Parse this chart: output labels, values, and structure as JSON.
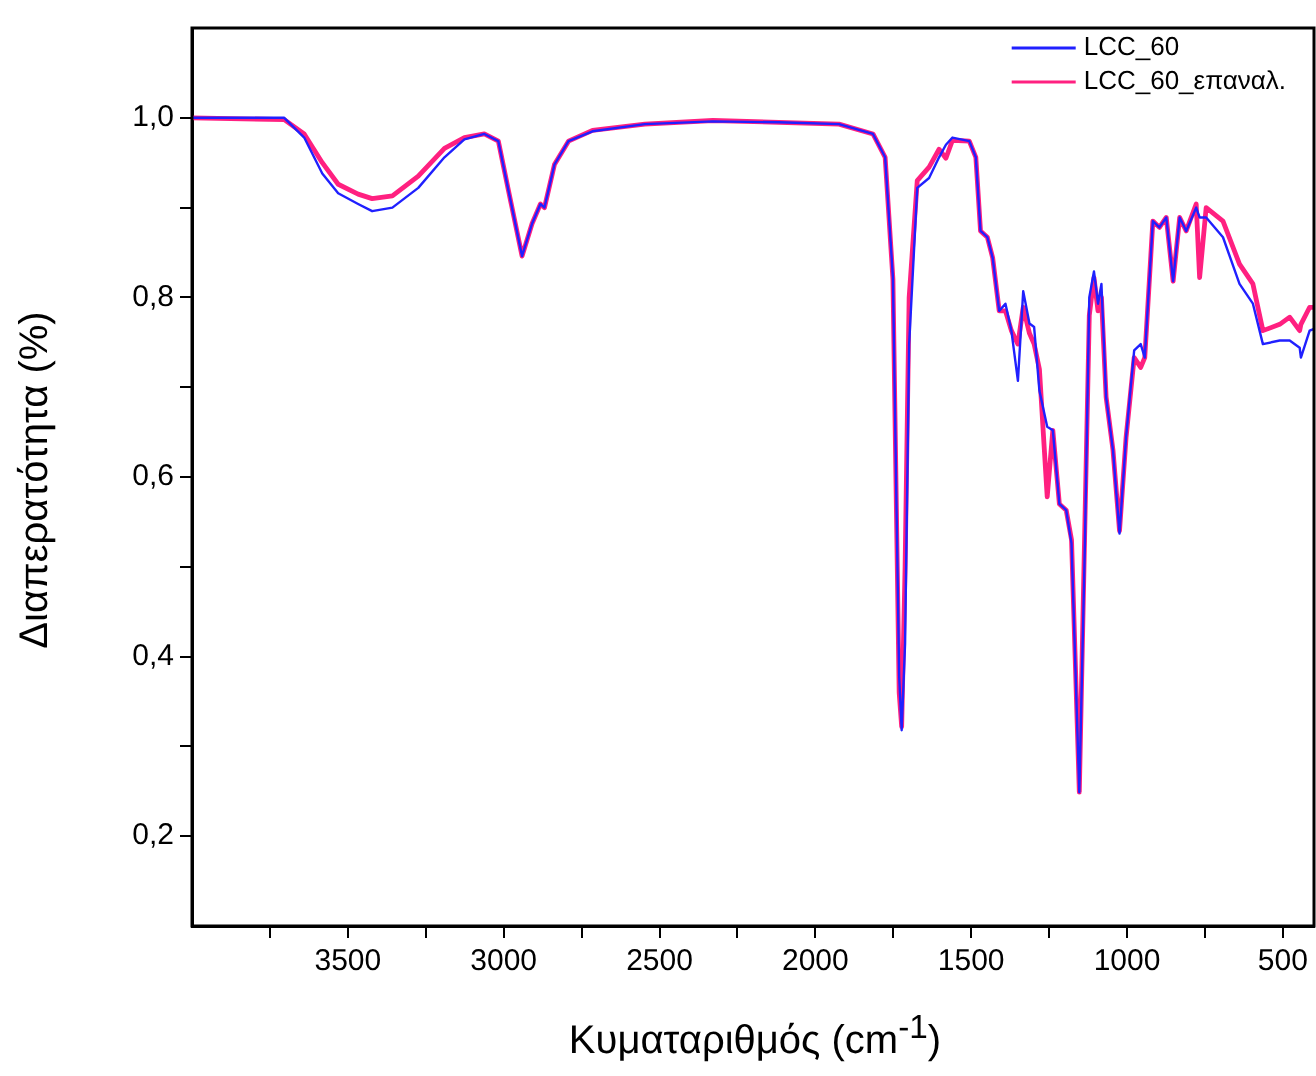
{
  "chart_data": {
    "type": "line",
    "xlabel": "Κυματαριθμός (cm$^{-1}$)",
    "ylabel": "Διαπερατότητα (%)",
    "x": [
      4000,
      3704,
      3640,
      3582,
      3531,
      3467,
      3422,
      3357,
      3274,
      3190,
      3126,
      3062,
      3017,
      2984,
      2941,
      2909,
      2882,
      2869,
      2837,
      2792,
      2715,
      2547,
      2329,
      2117,
      1924,
      1815,
      1776,
      1751,
      1731,
      1723,
      1712,
      1699,
      1673,
      1635,
      1603,
      1581,
      1560,
      1506,
      1485,
      1470,
      1448,
      1431,
      1410,
      1390,
      1371,
      1350,
      1333,
      1313,
      1298,
      1281,
      1256,
      1238,
      1217,
      1195,
      1178,
      1153,
      1135,
      1121,
      1106,
      1093,
      1082,
      1067,
      1045,
      1024,
      1003,
      977,
      956,
      943,
      917,
      896,
      874,
      852,
      831,
      810,
      778,
      767,
      746,
      692,
      639,
      596,
      564,
      510,
      478,
      446,
      442,
      414,
      400
    ],
    "series": [
      {
        "name": "LCC_60",
        "color": "#2020ff",
        "values": [
          1.0,
          1.0,
          0.978,
          0.938,
          0.916,
          0.904,
          0.896,
          0.9,
          0.922,
          0.956,
          0.976,
          0.982,
          0.974,
          0.918,
          0.846,
          0.882,
          0.904,
          0.9,
          0.948,
          0.974,
          0.985,
          0.993,
          0.996,
          0.995,
          0.993,
          0.982,
          0.956,
          0.822,
          0.378,
          0.318,
          0.415,
          0.748,
          0.922,
          0.933,
          0.956,
          0.97,
          0.978,
          0.974,
          0.956,
          0.874,
          0.867,
          0.844,
          0.785,
          0.793,
          0.763,
          0.707,
          0.807,
          0.771,
          0.767,
          0.696,
          0.656,
          0.652,
          0.57,
          0.563,
          0.526,
          0.249,
          0.526,
          0.8,
          0.829,
          0.793,
          0.815,
          0.689,
          0.63,
          0.537,
          0.644,
          0.741,
          0.748,
          0.733,
          0.885,
          0.878,
          0.889,
          0.818,
          0.889,
          0.874,
          0.9,
          0.889,
          0.889,
          0.867,
          0.815,
          0.793,
          0.748,
          0.752,
          0.752,
          0.744,
          0.733,
          0.763,
          0.765
        ]
      },
      {
        "name": "LCC_60_επαναλ.",
        "color": "#ff2080",
        "values": [
          1.0,
          0.998,
          0.982,
          0.95,
          0.926,
          0.915,
          0.91,
          0.913,
          0.935,
          0.966,
          0.978,
          0.982,
          0.974,
          0.918,
          0.846,
          0.882,
          0.904,
          0.9,
          0.948,
          0.974,
          0.986,
          0.993,
          0.997,
          0.995,
          0.993,
          0.982,
          0.956,
          0.82,
          0.36,
          0.322,
          0.5,
          0.8,
          0.93,
          0.945,
          0.965,
          0.955,
          0.975,
          0.974,
          0.956,
          0.874,
          0.867,
          0.844,
          0.785,
          0.785,
          0.763,
          0.748,
          0.789,
          0.76,
          0.748,
          0.72,
          0.578,
          0.652,
          0.57,
          0.563,
          0.53,
          0.249,
          0.55,
          0.78,
          0.822,
          0.785,
          0.8,
          0.689,
          0.63,
          0.54,
          0.644,
          0.733,
          0.722,
          0.733,
          0.885,
          0.878,
          0.889,
          0.818,
          0.889,
          0.874,
          0.904,
          0.822,
          0.9,
          0.885,
          0.837,
          0.815,
          0.763,
          0.77,
          0.778,
          0.763,
          0.77,
          0.789,
          0.789
        ]
      }
    ],
    "xlim": [
      4000,
      400
    ],
    "xticks": [
      {
        "value": 3750,
        "label": null
      },
      3500,
      {
        "value": 3250,
        "label": null
      },
      3000,
      {
        "value": 2750,
        "label": null
      },
      2500,
      {
        "value": 2250,
        "label": null
      },
      2000,
      {
        "value": 1750,
        "label": null
      },
      1500,
      {
        "value": 1250,
        "label": null
      },
      1000,
      {
        "value": 750,
        "label": null
      },
      500
    ],
    "ylim": [
      0.1,
      1.1
    ],
    "yticks": [
      {
        "value": 0.2,
        "label": "0,2"
      },
      {
        "value": 0.3,
        "label": null
      },
      {
        "value": 0.4,
        "label": "0,4"
      },
      {
        "value": 0.5,
        "label": null
      },
      {
        "value": 0.6,
        "label": "0,6"
      },
      {
        "value": 0.7,
        "label": null
      },
      {
        "value": 0.8,
        "label": "0,8"
      },
      {
        "value": 0.9,
        "label": null
      },
      {
        "value": 1.0,
        "label": "1,0"
      }
    ],
    "grid": false,
    "legend": "top right",
    "marker": "none",
    "line_style": "solid"
  }
}
